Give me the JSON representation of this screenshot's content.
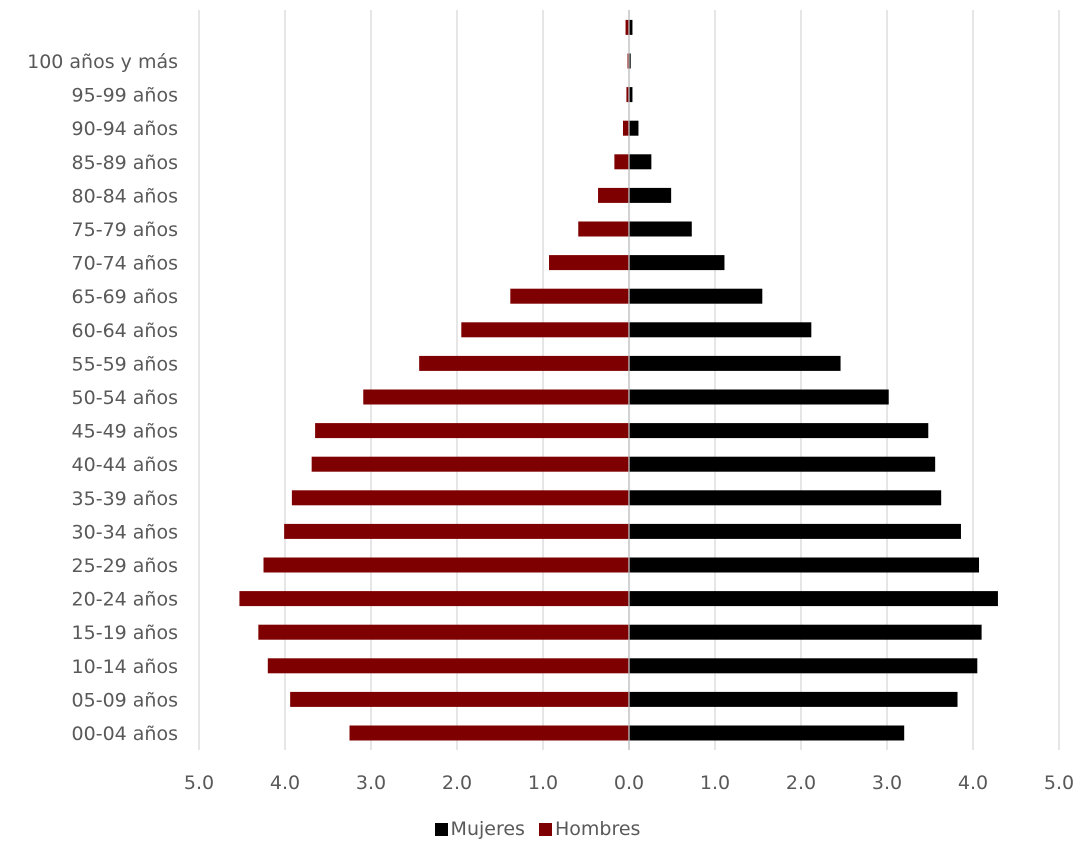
{
  "chart_data": {
    "type": "bar",
    "orientation": "horizontal",
    "layout": "population-pyramid",
    "categories": [
      "00-04 años",
      "05-09 años",
      "10-14 años",
      "15-19 años",
      "20-24 años",
      "25-29 años",
      "30-34 años",
      "35-39 años",
      "40-44 años",
      "45-49 años",
      "50-54 años",
      "55-59 años",
      "60-64 años",
      "65-69 años",
      "70-74 años",
      "75-79 años",
      "80-84 años",
      "85-89 años",
      "90-94 años",
      "95-99 años",
      "100 años y más",
      ""
    ],
    "series": [
      {
        "name": "Mujeres",
        "side": "right",
        "color": "#000000",
        "values": [
          3.2,
          3.82,
          4.05,
          4.1,
          4.29,
          4.07,
          3.86,
          3.63,
          3.56,
          3.48,
          3.02,
          2.46,
          2.12,
          1.55,
          1.11,
          0.73,
          0.49,
          0.26,
          0.11,
          0.04,
          0.02,
          0.04
        ]
      },
      {
        "name": "Hombres",
        "side": "left",
        "color": "#7f0000",
        "values": [
          3.25,
          3.94,
          4.2,
          4.31,
          4.53,
          4.25,
          4.01,
          3.92,
          3.69,
          3.65,
          3.09,
          2.44,
          1.95,
          1.38,
          0.93,
          0.59,
          0.36,
          0.17,
          0.07,
          0.03,
          0.01,
          0.04
        ]
      }
    ],
    "x_ticks": [
      "5.0",
      "4.0",
      "3.0",
      "2.0",
      "1.0",
      "0.0",
      "1.0",
      "2.0",
      "3.0",
      "4.0",
      "5.0"
    ],
    "xlim": [
      -5,
      5
    ],
    "grid": true,
    "legend_position": "bottom",
    "title": "",
    "xlabel": "",
    "ylabel": ""
  }
}
